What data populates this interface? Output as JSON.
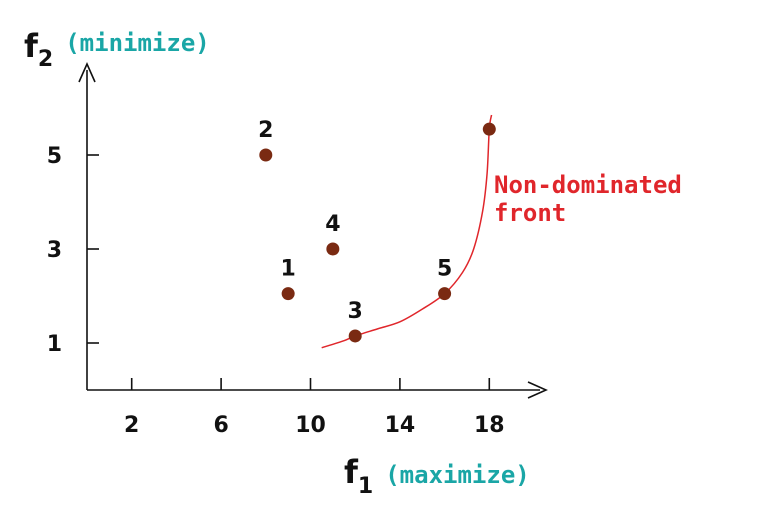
{
  "chart_data": {
    "type": "scatter",
    "xlabel": {
      "letter": "f",
      "subscript": "1",
      "note": "(maximize)"
    },
    "ylabel": {
      "letter": "f",
      "subscript": "2",
      "note": "(minimize)"
    },
    "xlim": [
      0,
      20
    ],
    "ylim": [
      0,
      6.5
    ],
    "x_ticks": [
      2,
      6,
      10,
      14,
      18
    ],
    "y_ticks": [
      1,
      3,
      5
    ],
    "grid": false,
    "points": [
      {
        "label": "1",
        "x": 9,
        "y": 2.05
      },
      {
        "label": "2",
        "x": 8,
        "y": 5
      },
      {
        "label": "3",
        "x": 12,
        "y": 1.15
      },
      {
        "label": "4",
        "x": 11,
        "y": 3
      },
      {
        "label": "5",
        "x": 16,
        "y": 2.05
      },
      {
        "label": "",
        "x": 18,
        "y": 5.55
      }
    ],
    "front": {
      "label_lines": [
        "Non-dominated",
        "front"
      ],
      "curve": [
        [
          10.5,
          0.9
        ],
        [
          11.5,
          1.05
        ],
        [
          12,
          1.15
        ],
        [
          13,
          1.3
        ],
        [
          14,
          1.45
        ],
        [
          15,
          1.72
        ],
        [
          16,
          2.05
        ],
        [
          16.8,
          2.5
        ],
        [
          17.3,
          3.0
        ],
        [
          17.7,
          3.8
        ],
        [
          17.9,
          4.6
        ],
        [
          18,
          5.55
        ],
        [
          18.1,
          5.85
        ]
      ]
    },
    "colors": {
      "point": "#7a2a12",
      "front": "#e0262b",
      "axis_note": "#1aa6a6",
      "axis": "#111111"
    }
  }
}
